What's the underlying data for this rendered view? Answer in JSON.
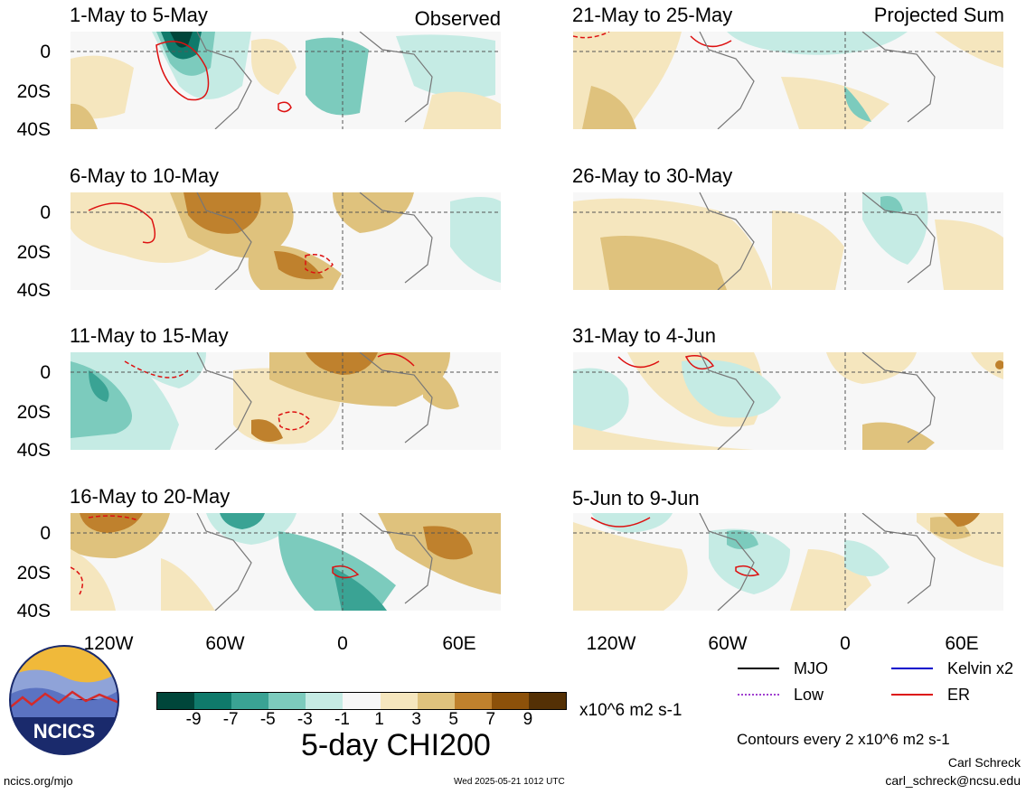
{
  "panels": {
    "left": [
      {
        "title": "1-May to 5-May",
        "corner": "Observed"
      },
      {
        "title": "6-May to 10-May",
        "corner": ""
      },
      {
        "title": "11-May to 15-May",
        "corner": ""
      },
      {
        "title": "16-May to 20-May",
        "corner": ""
      }
    ],
    "right": [
      {
        "title": "21-May to 25-May",
        "corner": "Projected Sum"
      },
      {
        "title": "26-May to 30-May",
        "corner": ""
      },
      {
        "title": "31-May to 4-Jun",
        "corner": ""
      },
      {
        "title": "5-Jun to 9-Jun",
        "corner": ""
      }
    ]
  },
  "axes": {
    "lat_labels": [
      "0",
      "20S",
      "40S"
    ],
    "lon_labels": [
      "120W",
      "60W",
      "0",
      "60E"
    ]
  },
  "colorbar": {
    "ticks": [
      "-9",
      "-7",
      "-5",
      "-3",
      "-1",
      "1",
      "3",
      "5",
      "7",
      "9"
    ],
    "colors": [
      "#00463a",
      "#0f7a6b",
      "#3aa394",
      "#7ccbbd",
      "#c5ebe4",
      "#f7f7f7",
      "#f5e6be",
      "#dfc27d",
      "#bf812d",
      "#8c510a",
      "#543005"
    ],
    "units": "x10^6 m2 s-1"
  },
  "title": "5-day CHI200",
  "legend": [
    {
      "label": "MJO",
      "color": "#000000",
      "style": "solid"
    },
    {
      "label": "Kelvin x2",
      "color": "#0000cc",
      "style": "solid"
    },
    {
      "label": "Low",
      "color": "#a040d0",
      "style": "dotted"
    },
    {
      "label": "ER",
      "color": "#dd1111",
      "style": "solid"
    }
  ],
  "contour_note": "Contours every 2 x10^6 m2 s-1",
  "credit": {
    "name": "Carl Schreck",
    "email": "carl_schreck@ncsu.edu"
  },
  "footer": {
    "site": "ncics.org/mjo",
    "timestamp": "Wed 2025-05-21 1012 UTC"
  },
  "logo": {
    "text": "NCICS"
  }
}
